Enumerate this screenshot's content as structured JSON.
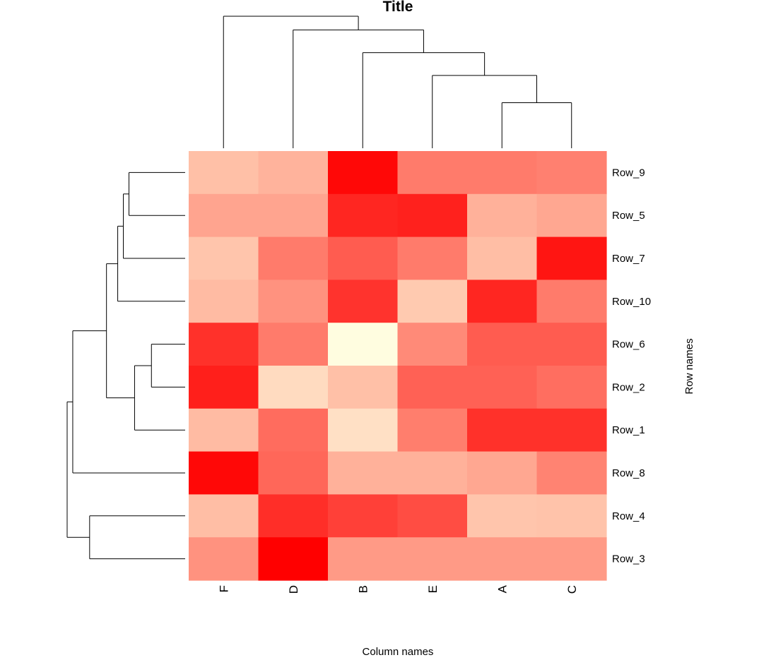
{
  "chart_data": {
    "type": "heatmap",
    "title": "Title",
    "xlabel": "Column names",
    "ylabel": "Row names",
    "columns": [
      "F",
      "D",
      "B",
      "E",
      "A",
      "C"
    ],
    "rows": [
      "Row_9",
      "Row_5",
      "Row_7",
      "Row_10",
      "Row_6",
      "Row_2",
      "Row_1",
      "Row_8",
      "Row_4",
      "Row_3"
    ],
    "values": [
      [
        0.25,
        0.3,
        0.97,
        0.52,
        0.52,
        0.5
      ],
      [
        0.36,
        0.36,
        0.85,
        0.87,
        0.31,
        0.35
      ],
      [
        0.23,
        0.52,
        0.64,
        0.52,
        0.26,
        0.92
      ],
      [
        0.27,
        0.43,
        0.8,
        0.21,
        0.85,
        0.52
      ],
      [
        0.81,
        0.52,
        0.0,
        0.46,
        0.64,
        0.64
      ],
      [
        0.88,
        0.14,
        0.25,
        0.62,
        0.62,
        0.57
      ],
      [
        0.27,
        0.58,
        0.12,
        0.51,
        0.81,
        0.81
      ],
      [
        0.97,
        0.6,
        0.31,
        0.31,
        0.35,
        0.49
      ],
      [
        0.26,
        0.82,
        0.75,
        0.7,
        0.23,
        0.24
      ],
      [
        0.43,
        1.0,
        0.4,
        0.4,
        0.4,
        0.4
      ]
    ],
    "color_scale": {
      "low": "#FFFDE0",
      "mid": "#FFC8AE",
      "high": "#FF0000"
    },
    "column_dendrogram": {
      "order": [
        "F",
        "D",
        "B",
        "E",
        "A",
        "C"
      ],
      "merges": [
        {
          "left": "A",
          "right": "C",
          "height": 1.0
        },
        {
          "left": "E",
          "right": "A+C",
          "height": 1.6
        },
        {
          "left": "B",
          "right": "E+A+C",
          "height": 2.1
        },
        {
          "left": "D",
          "right": "B+E+A+C",
          "height": 2.6
        },
        {
          "left": "F",
          "right": "D+B+E+A+C",
          "height": 2.9
        }
      ]
    },
    "row_dendrogram": {
      "order": [
        "Row_9",
        "Row_5",
        "Row_7",
        "Row_10",
        "Row_6",
        "Row_2",
        "Row_1",
        "Row_8",
        "Row_4",
        "Row_3"
      ],
      "merges": [
        {
          "left": "Row_9",
          "right": "Row_5",
          "height": 1.0
        },
        {
          "left": "Row_6",
          "right": "Row_2",
          "height": 0.6
        },
        {
          "left": "Row_9+Row_5",
          "right": "Row_7",
          "height": 1.1
        },
        {
          "left": "Row_6+Row_2",
          "right": "Row_1",
          "height": 0.9
        },
        {
          "left": "Row_9+Row_5+Row_7",
          "right": "Row_10",
          "height": 1.2
        },
        {
          "left": "Row_4",
          "right": "Row_3",
          "height": 1.7
        },
        {
          "left": "Rows_top_group",
          "right": "Rows_mid_group",
          "height": 1.4
        },
        {
          "left": "Rows_top_mid",
          "right": "Row_8",
          "height": 2.0
        },
        {
          "left": "Rows_top_mid_8",
          "right": "Row_4+Row_3",
          "height": 2.1
        }
      ]
    }
  }
}
